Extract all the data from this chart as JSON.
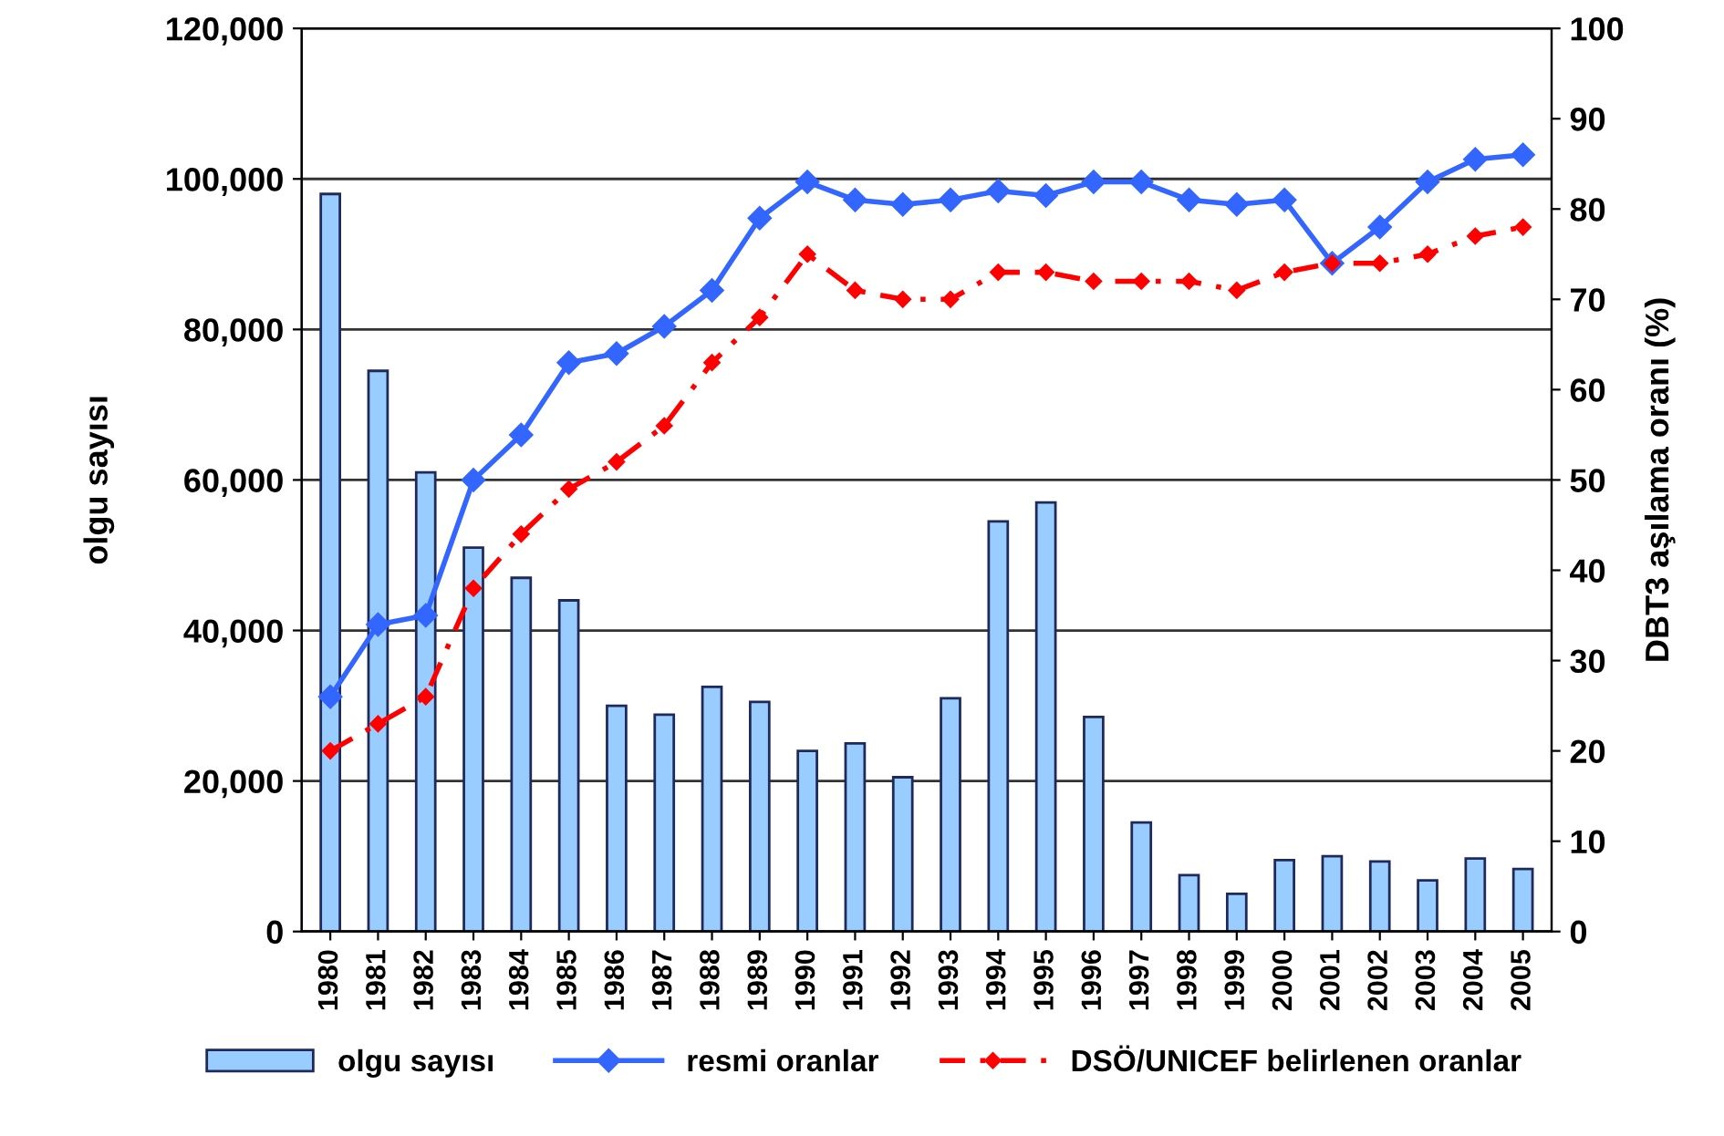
{
  "chart_data": {
    "type": "bar",
    "ylabel": "olgu sayısı",
    "y2label": "DBT3 aşılama oranı (%)",
    "categories": [
      "1980",
      "1981",
      "1982",
      "1983",
      "1984",
      "1985",
      "1986",
      "1987",
      "1988",
      "1989",
      "1990",
      "1991",
      "1992",
      "1993",
      "1994",
      "1995",
      "1996",
      "1997",
      "1998",
      "1999",
      "2000",
      "2001",
      "2002",
      "2003",
      "2004",
      "2005"
    ],
    "series": [
      {
        "name": "olgu sayısı",
        "color": "#99ccff",
        "values": [
          98000,
          74500,
          61000,
          51000,
          47000,
          44000,
          30000,
          28800,
          32500,
          30500,
          24000,
          25000,
          20500,
          31000,
          54500,
          57000,
          28500,
          14500,
          7500,
          5000,
          9500,
          10000,
          9300,
          6800,
          9700,
          8300
        ]
      },
      {
        "name": "resmi oranlar",
        "type": "line",
        "axis": "y2",
        "color": "#3366ff",
        "marker": "diamond",
        "line_style": "solid",
        "values": [
          26,
          34,
          35,
          50,
          55,
          63,
          64,
          67,
          71,
          79,
          83,
          81,
          80.5,
          81,
          82,
          81.5,
          83,
          83,
          81,
          80.5,
          81,
          74,
          78,
          83,
          85.5,
          86
        ]
      },
      {
        "name": "DSÖ/UNICEF belirlenen oranlar",
        "type": "line",
        "axis": "y2",
        "color": "#ff0000",
        "marker": "diamond",
        "line_style": "dashed",
        "values": [
          20,
          23,
          26,
          38,
          44,
          49,
          52,
          56,
          63,
          68,
          75,
          71,
          70,
          70,
          73,
          73,
          72,
          72,
          72,
          71,
          73,
          74,
          74,
          75,
          77,
          78
        ]
      }
    ],
    "ylim": [
      0,
      120000
    ],
    "yticks": [
      {
        "value": 0,
        "label": "0"
      },
      {
        "value": 20000,
        "label": "20,000"
      },
      {
        "value": 40000,
        "label": "40,000"
      },
      {
        "value": 60000,
        "label": "60,000"
      },
      {
        "value": 80000,
        "label": "80,000"
      },
      {
        "value": 100000,
        "label": "100,000"
      },
      {
        "value": 120000,
        "label": "120,000"
      }
    ],
    "y2lim": [
      0,
      100
    ],
    "y2ticks": [
      0,
      10,
      20,
      30,
      40,
      50,
      60,
      70,
      80,
      90,
      100
    ],
    "grid": "y",
    "legend": "bottom"
  }
}
